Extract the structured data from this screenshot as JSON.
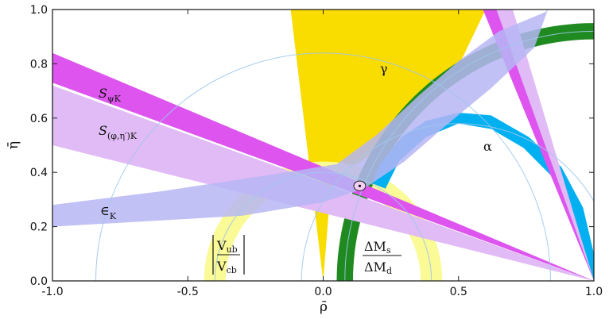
{
  "chart_data": {
    "type": "area",
    "title": "",
    "xlabel": "ρ̄",
    "ylabel": "η̄",
    "xlim": [
      -1.0,
      1.0
    ],
    "ylim": [
      0.0,
      1.0
    ],
    "x_ticks": [
      {
        "value": -1.0,
        "label": "-1.0"
      },
      {
        "value": -0.5,
        "label": "-0.5"
      },
      {
        "value": 0.0,
        "label": "0.0"
      },
      {
        "value": 0.5,
        "label": "0.5"
      },
      {
        "value": 1.0,
        "label": "1.0"
      }
    ],
    "y_ticks": [
      {
        "value": 0.0,
        "label": "0.0"
      },
      {
        "value": 0.2,
        "label": "0.2"
      },
      {
        "value": 0.4,
        "label": "0.4"
      },
      {
        "value": 0.6,
        "label": "0.6"
      },
      {
        "value": 0.8,
        "label": "0.8"
      },
      {
        "value": 1.0,
        "label": "1.0"
      }
    ],
    "colors": {
      "gamma": "#f9dc00",
      "vub_vcb": "#fafa96",
      "dms_dmd": "#1f8a1f",
      "alpha": "#00b0f0",
      "spsik": "#dd55ee",
      "sphi": "#e0bbf5",
      "epsk": "#b6b6f5"
    },
    "regions": [
      {
        "key": "gamma",
        "label": "γ",
        "polygon": [
          [
            0.0,
            0.0
          ],
          [
            -0.12,
            1.0
          ],
          [
            0.6,
            1.0
          ],
          [
            0.48,
            0.75
          ],
          [
            0.3,
            0.56
          ],
          [
            0.14,
            0.44
          ],
          [
            0.03,
            0.37
          ],
          [
            0.0,
            0.0
          ]
        ]
      },
      {
        "key": "vub_vcb",
        "label_numerator": "V",
        "label_num_sub": "ub",
        "label_denominator": "V",
        "label_den_sub": "cb",
        "circle": {
          "center": [
            0.0,
            0.0
          ],
          "inner_radius": 0.36,
          "outer_radius": 0.44,
          "theta_deg": [
            0,
            180
          ]
        }
      },
      {
        "key": "dms_dmd",
        "label_prefix": "ΔM",
        "label_num_sub": "s",
        "label_den_sub": "d",
        "circle": {
          "center": [
            1.0,
            0.0
          ],
          "inner_radius": 0.89,
          "outer_radius": 0.95,
          "theta_deg": [
            70,
            180
          ]
        }
      },
      {
        "key": "alpha",
        "label": "α",
        "polygon": [
          [
            0.23,
            0.34
          ],
          [
            0.28,
            0.44
          ],
          [
            0.38,
            0.53
          ],
          [
            0.5,
            0.58
          ],
          [
            0.62,
            0.56
          ],
          [
            0.74,
            0.49
          ],
          [
            0.84,
            0.39
          ],
          [
            0.92,
            0.26
          ],
          [
            0.97,
            0.1
          ],
          [
            1.0,
            0.0
          ],
          [
            1.0,
            0.1
          ],
          [
            0.96,
            0.27
          ],
          [
            0.88,
            0.42
          ],
          [
            0.76,
            0.53
          ],
          [
            0.62,
            0.61
          ],
          [
            0.5,
            0.62
          ],
          [
            0.38,
            0.59
          ],
          [
            0.29,
            0.53
          ],
          [
            0.21,
            0.43
          ],
          [
            0.18,
            0.36
          ]
        ]
      },
      {
        "key": "sphi",
        "label": "S",
        "label_sub": "(φ,η′)K",
        "polygon": [
          [
            -1.0,
            0.72
          ],
          [
            1.0,
            0.0
          ],
          [
            -1.0,
            0.5
          ]
        ],
        "polygon2": [
          [
            0.6,
            1.0
          ],
          [
            0.7,
            1.0
          ],
          [
            1.0,
            0.0
          ]
        ]
      },
      {
        "key": "spsik",
        "label": "S",
        "label_sub": "ψK",
        "polygon": [
          [
            -1.0,
            0.84
          ],
          [
            1.0,
            0.0
          ],
          [
            -1.0,
            0.73
          ]
        ],
        "polygon2": [
          [
            0.59,
            1.0
          ],
          [
            0.64,
            1.0
          ],
          [
            1.0,
            0.0
          ]
        ]
      },
      {
        "key": "epsk",
        "label": "∈",
        "label_sub": "K",
        "polygon": [
          [
            -1.0,
            0.28
          ],
          [
            -0.6,
            0.33
          ],
          [
            -0.2,
            0.39
          ],
          [
            0.05,
            0.43
          ],
          [
            0.2,
            0.54
          ],
          [
            0.35,
            0.68
          ],
          [
            0.5,
            0.81
          ],
          [
            0.65,
            0.92
          ],
          [
            0.82,
            0.99
          ],
          [
            0.83,
            1.0
          ],
          [
            0.78,
            0.86
          ],
          [
            0.62,
            0.71
          ],
          [
            0.45,
            0.57
          ],
          [
            0.3,
            0.44
          ],
          [
            0.15,
            0.34
          ],
          [
            0.0,
            0.29
          ],
          [
            -0.3,
            0.24
          ],
          [
            -1.0,
            0.2
          ]
        ]
      }
    ],
    "reference_circles": [
      {
        "center": [
          0.0,
          0.0
        ],
        "radius": 0.4
      },
      {
        "center": [
          1.0,
          0.0
        ],
        "radius": 0.92
      },
      {
        "center": [
          0.5,
          0.0
        ],
        "radius": 0.58
      },
      {
        "center": [
          0.0,
          0.0
        ],
        "radius": 0.84
      }
    ],
    "best_fit": {
      "x": 0.135,
      "y": 0.35,
      "ellipse_rx": 0.022,
      "ellipse_ry": 0.018
    }
  }
}
